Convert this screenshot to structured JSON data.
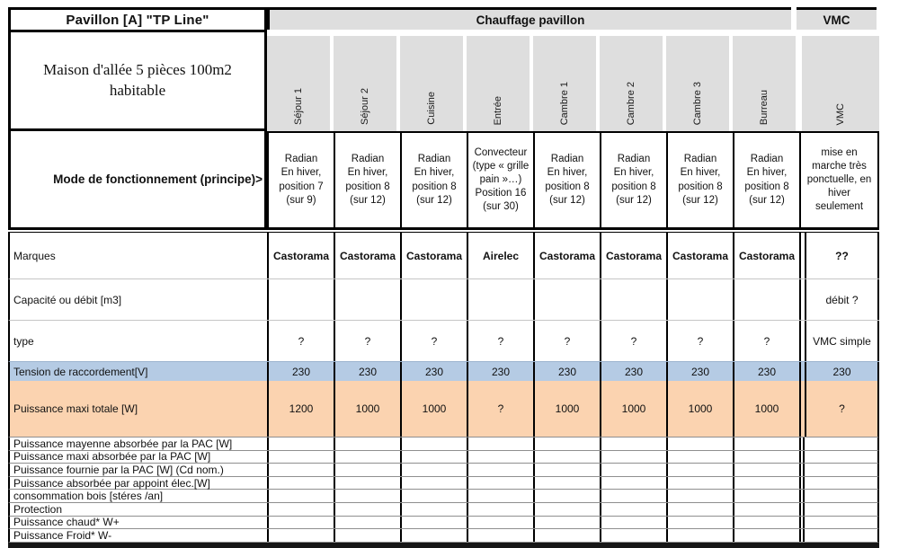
{
  "header": {
    "pavilion_title": "Pavillon [A] \"TP Line\"",
    "group_heating": "Chauffage pavillon",
    "group_vmc": "VMC",
    "house_description": "Maison d'allée 5 pièces 100m2\nhabitable"
  },
  "columns": [
    "Séjour 1",
    "Séjour 2",
    "Cuisine",
    "Entrée",
    "Cambre 1",
    "Cambre 2",
    "Cambre 3",
    "Burreau",
    "VMC"
  ],
  "mode_row": {
    "label": "Mode de fonctionnement (principe)>",
    "values": [
      "Radian\nEn hiver,\nposition 7\n(sur 9)",
      "Radian\nEn hiver,\nposition 8\n(sur 12)",
      "Radian\nEn hiver,\nposition 8\n(sur 12)",
      "Convecteur\n(type « grille\npain »…)\nPosition 16\n(sur 30)",
      "Radian\nEn hiver,\nposition 8\n(sur 12)",
      "Radian\nEn hiver,\nposition 8\n(sur 12)",
      "Radian\nEn hiver,\nposition 8\n(sur 12)",
      "Radian\nEn hiver,\nposition 8\n(sur 12)",
      "mise en\nmarche très\nponctuelle, en\nhiver\nseulement"
    ]
  },
  "rows": {
    "marques": {
      "label": "Marques",
      "values": [
        "Castorama",
        "Castorama",
        "Castorama",
        "Airelec",
        "Castorama",
        "Castorama",
        "Castorama",
        "Castorama",
        "??"
      ]
    },
    "capacite": {
      "label": "Capacité ou débit [m3]",
      "values": [
        "",
        "",
        "",
        "",
        "",
        "",
        "",
        "",
        "débit ?"
      ]
    },
    "type": {
      "label": "type",
      "values": [
        "?",
        "?",
        "?",
        "?",
        "?",
        "?",
        "?",
        "?",
        "VMC simple"
      ]
    },
    "tension": {
      "label": "Tension de raccordement[V]",
      "values": [
        "230",
        "230",
        "230",
        "230",
        "230",
        "230",
        "230",
        "230",
        "230"
      ]
    },
    "puissance_maxi": {
      "label": "Puissance maxi totale [W]",
      "values": [
        "1200",
        "1000",
        "1000",
        "?",
        "1000",
        "1000",
        "1000",
        "1000",
        "?"
      ]
    }
  },
  "empty_rows": [
    "Puissance mayenne absorbée par la PAC [W]",
    "Puissance maxi absorbée par la PAC [W]",
    "Puissance fournie par la PAC [W] (Cd nom.)",
    "Puissance absorbée par appoint élec.[W]",
    "consommation bois  [stéres /an]",
    "Protection",
    "Puissance chaud* W+",
    "Puissance Froid* W-"
  ],
  "colors": {
    "header_gray": "#dedede",
    "tension_row_blue": "#b5cbe4",
    "puissance_row_orange": "#fbd3b0"
  }
}
